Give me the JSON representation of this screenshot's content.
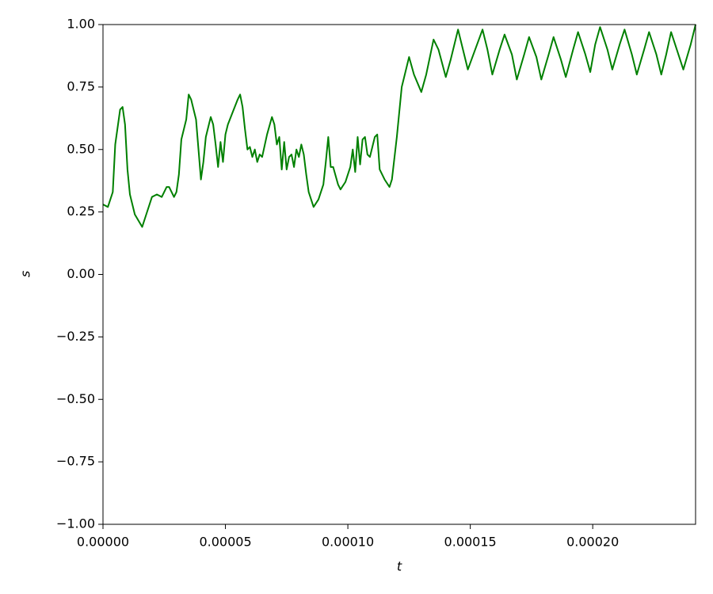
{
  "chart_data": {
    "type": "line",
    "x_label": "t",
    "y_label": "s",
    "x": [
      0,
      2e-06,
      4e-06,
      5e-06,
      7e-06,
      8e-06,
      9e-06,
      1e-05,
      1.1e-05,
      1.3e-05,
      1.6e-05,
      1.8e-05,
      2e-05,
      2.2e-05,
      2.4e-05,
      2.6e-05,
      2.7e-05,
      2.9e-05,
      3e-05,
      3.1e-05,
      3.2e-05,
      3.4e-05,
      3.5e-05,
      3.6e-05,
      3.8e-05,
      3.9e-05,
      4e-05,
      4.1e-05,
      4.2e-05,
      4.4e-05,
      4.5e-05,
      4.6e-05,
      4.7e-05,
      4.8e-05,
      4.9e-05,
      5e-05,
      5.1e-05,
      5.3e-05,
      5.5e-05,
      5.6e-05,
      5.7e-05,
      5.8e-05,
      5.9e-05,
      6e-05,
      6.1e-05,
      6.2e-05,
      6.3e-05,
      6.4e-05,
      6.5e-05,
      6.7e-05,
      6.9e-05,
      7e-05,
      7.1e-05,
      7.2e-05,
      7.3e-05,
      7.4e-05,
      7.5e-05,
      7.6e-05,
      7.7e-05,
      7.8e-05,
      7.9e-05,
      8e-05,
      8.1e-05,
      8.2e-05,
      8.3e-05,
      8.4e-05,
      8.6e-05,
      8.8e-05,
      9e-05,
      9.1e-05,
      9.2e-05,
      9.3e-05,
      9.4e-05,
      9.6e-05,
      9.7e-05,
      9.9e-05,
      0.0001,
      0.000101,
      0.000102,
      0.000103,
      0.000104,
      0.000105,
      0.000106,
      0.000107,
      0.000108,
      0.000109,
      0.000111,
      0.000112,
      0.000113,
      0.000115,
      0.000117,
      0.000118,
      0.00012,
      0.000122,
      0.000125,
      0.000127,
      0.00013,
      0.000132,
      0.000135,
      0.000137,
      0.00014,
      0.000142,
      0.000145,
      0.000147,
      0.000149,
      0.000152,
      0.000155,
      0.000157,
      0.000159,
      0.000162,
      0.000164,
      0.000167,
      0.000169,
      0.000172,
      0.000174,
      0.000177,
      0.000179,
      0.000182,
      0.000184,
      0.000187,
      0.000189,
      0.000192,
      0.000194,
      0.000197,
      0.000199,
      0.000201,
      0.000203,
      0.000206,
      0.000208,
      0.000211,
      0.000213,
      0.000216,
      0.000218,
      0.000221,
      0.000223,
      0.000226,
      0.000228,
      0.00023,
      0.000232,
      0.000235,
      0.000237,
      0.00024,
      0.000242
    ],
    "series": [
      {
        "color": "#008000",
        "values": [
          0.28,
          0.27,
          0.33,
          0.52,
          0.66,
          0.67,
          0.6,
          0.42,
          0.32,
          0.24,
          0.19,
          0.25,
          0.31,
          0.32,
          0.31,
          0.35,
          0.35,
          0.31,
          0.33,
          0.4,
          0.54,
          0.62,
          0.72,
          0.7,
          0.62,
          0.5,
          0.38,
          0.45,
          0.55,
          0.63,
          0.6,
          0.52,
          0.43,
          0.53,
          0.45,
          0.56,
          0.6,
          0.65,
          0.7,
          0.72,
          0.67,
          0.58,
          0.5,
          0.51,
          0.47,
          0.5,
          0.45,
          0.48,
          0.47,
          0.56,
          0.63,
          0.6,
          0.52,
          0.55,
          0.42,
          0.53,
          0.42,
          0.47,
          0.48,
          0.43,
          0.5,
          0.47,
          0.52,
          0.48,
          0.4,
          0.33,
          0.27,
          0.3,
          0.36,
          0.45,
          0.55,
          0.43,
          0.43,
          0.36,
          0.34,
          0.37,
          0.4,
          0.43,
          0.5,
          0.41,
          0.55,
          0.44,
          0.54,
          0.55,
          0.48,
          0.47,
          0.55,
          0.56,
          0.42,
          0.38,
          0.35,
          0.38,
          0.55,
          0.75,
          0.87,
          0.8,
          0.73,
          0.8,
          0.94,
          0.9,
          0.79,
          0.86,
          0.98,
          0.9,
          0.82,
          0.9,
          0.98,
          0.9,
          0.8,
          0.9,
          0.96,
          0.88,
          0.78,
          0.88,
          0.95,
          0.87,
          0.78,
          0.88,
          0.95,
          0.86,
          0.79,
          0.9,
          0.97,
          0.88,
          0.81,
          0.92,
          0.99,
          0.9,
          0.82,
          0.92,
          0.98,
          0.88,
          0.8,
          0.9,
          0.97,
          0.88,
          0.8,
          0.88,
          0.97,
          0.88,
          0.82,
          0.92,
          1.0
        ]
      }
    ],
    "xlim": [
      0,
      0.000242
    ],
    "xticks": [
      {
        "value": 0,
        "label": "0.00000"
      },
      {
        "value": 5e-05,
        "label": "0.00005"
      },
      {
        "value": 0.0001,
        "label": "0.00010"
      },
      {
        "value": 0.00015,
        "label": "0.00015"
      },
      {
        "value": 0.0002,
        "label": "0.00020"
      }
    ],
    "ylim": [
      -1,
      1
    ],
    "yticks": [
      {
        "value": -1,
        "label": "−1.00"
      },
      {
        "value": -0.75,
        "label": "−0.75"
      },
      {
        "value": -0.5,
        "label": "−0.50"
      },
      {
        "value": -0.25,
        "label": "−0.25"
      },
      {
        "value": 0,
        "label": "0.00"
      },
      {
        "value": 0.25,
        "label": "0.25"
      },
      {
        "value": 0.5,
        "label": "0.50"
      },
      {
        "value": 0.75,
        "label": "0.75"
      },
      {
        "value": 1,
        "label": "1.00"
      }
    ]
  }
}
